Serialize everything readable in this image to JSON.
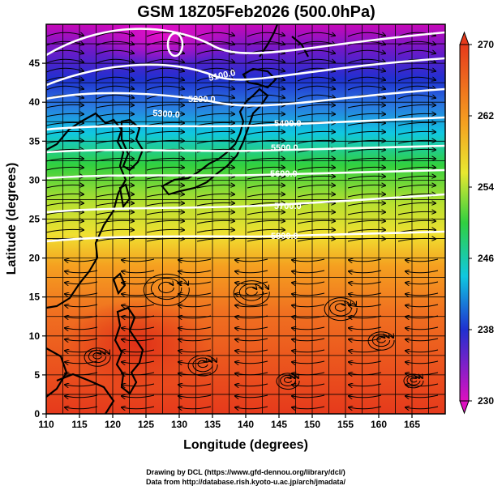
{
  "title": "GSM 18Z05Feb2026 (500.0hPa)",
  "xlabel": "Longitude (degrees)",
  "ylabel": "Latitude  (degrees)",
  "x_ticks": [
    "110",
    "115",
    "120",
    "125",
    "130",
    "135",
    "140",
    "145",
    "150",
    "155",
    "160",
    "165"
  ],
  "y_ticks": [
    "0",
    "5",
    "10",
    "15",
    "20",
    "25",
    "30",
    "35",
    "40",
    "45"
  ],
  "colorbar_ticks": [
    "230",
    "238",
    "246",
    "254",
    "262",
    "270"
  ],
  "contour_labels": [
    "5100.0",
    "5200.0",
    "5300.0",
    "5400.0",
    "5500.0",
    "5600.0",
    "5700.0",
    "5800.0"
  ],
  "footer_line1": "Drawing by DCL (https://www.gfd-dennou.org/library/dcl/)",
  "footer_line2": "Data from http://database.rish.kyoto-u.ac.jp/arch/jmadata/",
  "chart_data": {
    "type": "map",
    "field": "temperature shading (K) with geopotential height contours and wind streamlines",
    "level": "500.0hPa",
    "lon_range": [
      110,
      170
    ],
    "lat_range": [
      0,
      50
    ],
    "colorbar_range": [
      230,
      270
    ],
    "contour_values": [
      5100,
      5200,
      5300,
      5400,
      5500,
      5600,
      5700,
      5800
    ]
  },
  "colors": {
    "magenta": "#dd10c0",
    "blue": "#2030d0",
    "cyan": "#10c8e0",
    "green": "#30d040",
    "yellow": "#e8e830",
    "orange": "#f08020",
    "red": "#e63a1c"
  }
}
